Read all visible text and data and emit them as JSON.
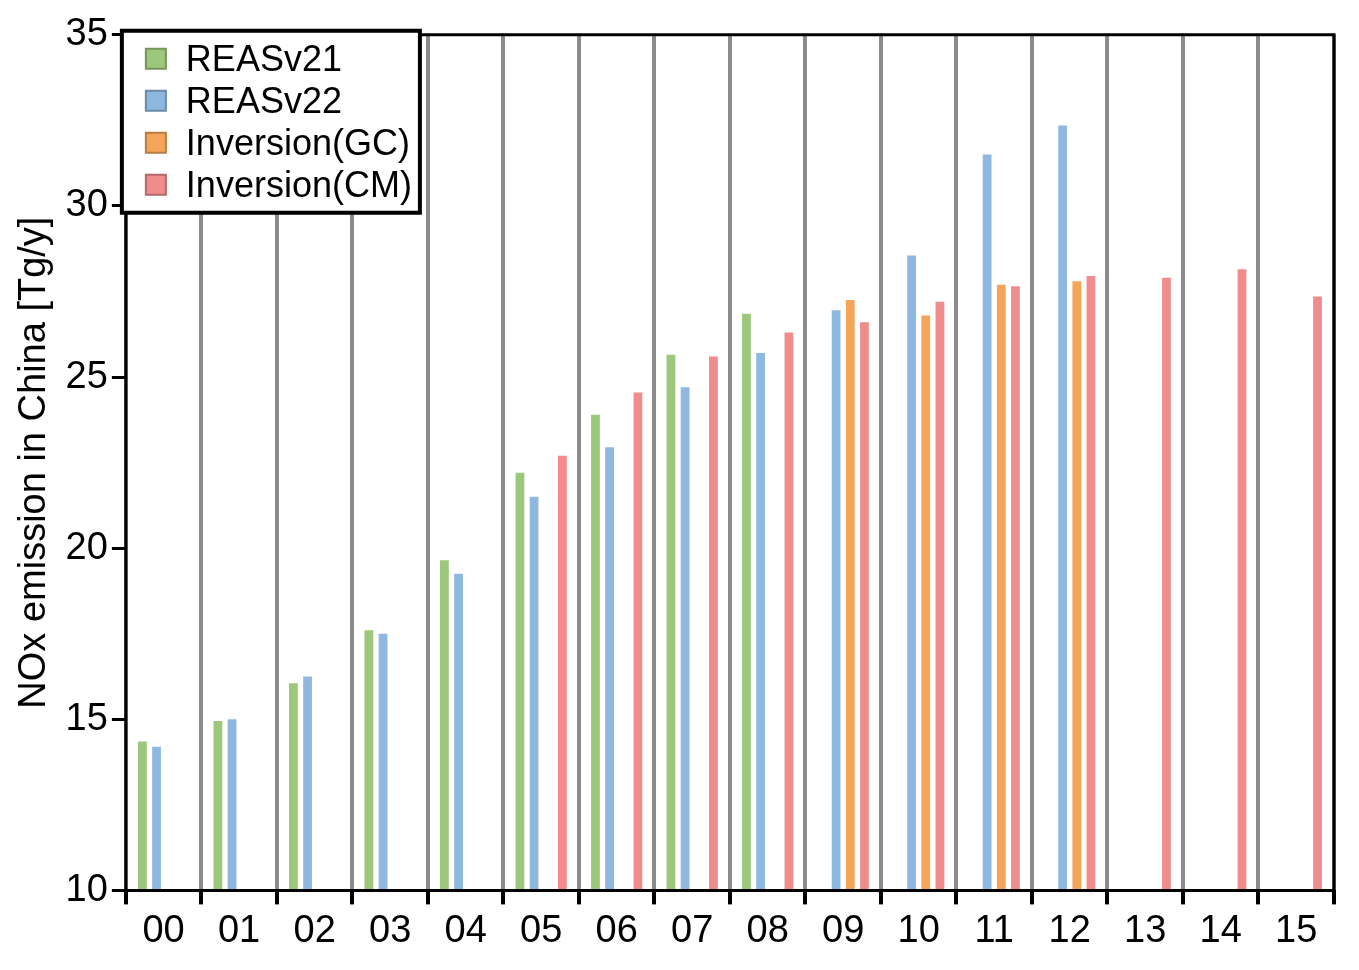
{
  "chart_data": {
    "type": "bar",
    "ylabel": "NOx emission in China [Tg/y]",
    "categories": [
      "00",
      "01",
      "02",
      "03",
      "04",
      "05",
      "06",
      "07",
      "08",
      "09",
      "10",
      "11",
      "12",
      "13",
      "14",
      "15"
    ],
    "series": [
      {
        "name": "REASv21",
        "color": "#9dc77a",
        "values": [
          14.35,
          14.95,
          16.05,
          17.6,
          19.65,
          22.2,
          23.9,
          25.65,
          26.85,
          null,
          null,
          null,
          null,
          null,
          null,
          null
        ]
      },
      {
        "name": "REASv22",
        "color": "#8fb8e0",
        "values": [
          14.2,
          15,
          16.25,
          17.5,
          19.25,
          21.5,
          22.95,
          24.7,
          25.7,
          26.95,
          28.55,
          31.5,
          32.35,
          null,
          null,
          null
        ]
      },
      {
        "name": "Inversion(GC)",
        "color": "#f5a55a",
        "values": [
          null,
          null,
          null,
          null,
          null,
          null,
          null,
          null,
          null,
          27.25,
          26.8,
          27.7,
          27.8,
          null,
          null,
          null
        ]
      },
      {
        "name": "Inversion(CM)",
        "color": "#f08c8c",
        "values": [
          null,
          null,
          null,
          null,
          null,
          22.7,
          24.55,
          25.6,
          26.3,
          26.6,
          27.2,
          27.65,
          27.95,
          27.9,
          28.15,
          27.35
        ]
      }
    ],
    "ylim": [
      10,
      35
    ],
    "yticks": [
      10,
      15,
      20,
      25,
      30,
      35
    ],
    "grid": "x",
    "legend": "top left"
  }
}
